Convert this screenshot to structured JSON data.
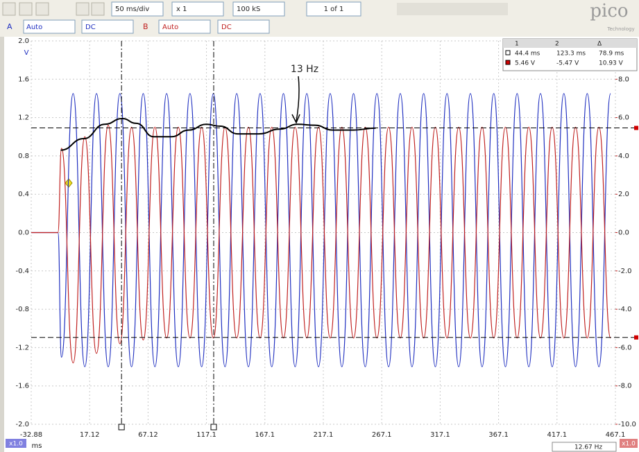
{
  "toolbar": {
    "timebase": "50 ms/div",
    "zoom": "x 1",
    "samples": "100 kS",
    "buffer": "1 of 1",
    "logo": "pico",
    "logo_sub": "Technology"
  },
  "channels": [
    {
      "label": "A",
      "range": "Auto",
      "coupling": "DC"
    },
    {
      "label": "B",
      "range": "Auto",
      "coupling": "DC"
    }
  ],
  "chart_data": {
    "type": "line",
    "y_unit": "V",
    "x_unit": "ms",
    "xlim": [
      -32.88,
      467.12
    ],
    "xticks": [
      -32.88,
      17.12,
      67.12,
      {
        "value": 117.12,
        "label": "117.1"
      },
      {
        "value": 167.12,
        "label": "167.1"
      },
      {
        "value": 217.12,
        "label": "217.1"
      },
      {
        "value": 267.12,
        "label": "267.1"
      },
      {
        "value": 317.12,
        "label": "317.1"
      },
      {
        "value": 367.12,
        "label": "367.1"
      },
      {
        "value": 417.12,
        "label": "417.1"
      },
      {
        "value": 467.12,
        "label": "467.1"
      }
    ],
    "ylim": [
      -2,
      2
    ],
    "yticks": [
      {
        "value": 2,
        "label": "2.0"
      },
      1.6,
      1.2,
      0.8,
      0.4,
      {
        "value": 0,
        "label": "0.0"
      },
      -0.4,
      -0.8,
      -1.2,
      -1.6,
      {
        "value": -2,
        "label": "-2.0"
      }
    ],
    "y2lim": [
      -10,
      10
    ],
    "y2ticks": [
      {
        "value": 8,
        "label": "8.0"
      },
      {
        "value": 6,
        "label": "6.0"
      },
      {
        "value": 4,
        "label": "4.0"
      },
      {
        "value": 2,
        "label": "2.0"
      },
      {
        "value": 0,
        "label": "0.0"
      },
      {
        "value": -2,
        "label": "-2.0"
      },
      {
        "value": -4,
        "label": "-4.0"
      },
      {
        "value": -6,
        "label": "-6.0"
      },
      {
        "value": -8,
        "label": "-8.0"
      },
      {
        "value": -10,
        "label": "-10.0"
      }
    ],
    "grid": true,
    "x": [
      -32.88,
      -10,
      -7,
      3,
      13,
      23,
      33,
      43,
      53,
      63,
      73,
      83,
      93,
      103,
      113,
      123,
      133,
      143,
      153,
      163,
      173,
      183,
      193,
      203,
      213,
      223,
      233,
      243,
      253,
      263,
      273,
      283,
      293,
      303,
      313,
      323,
      333,
      343,
      353,
      363,
      373,
      383,
      393,
      403,
      413,
      423,
      433,
      443,
      453,
      463
    ],
    "series": [
      {
        "color": "#1f2fc0",
        "values": [
          0,
          0,
          -1.3,
          1.45,
          -1.4,
          1.45,
          -1.4,
          1.45,
          -1.4,
          1.45,
          -1.4,
          1.45,
          -1.4,
          1.45,
          -1.4,
          1.45,
          -1.4,
          1.45,
          -1.4,
          1.45,
          -1.4,
          1.45,
          -1.4,
          1.45,
          -1.4,
          1.45,
          -1.4,
          1.45,
          -1.4,
          1.45,
          -1.4,
          1.45,
          -1.4,
          1.45,
          -1.4,
          1.45,
          -1.4,
          1.45,
          -1.4,
          1.45,
          -1.4,
          1.45,
          -1.4,
          1.45,
          -1.4,
          1.45,
          -1.4,
          1.45,
          -1.4,
          1.45
        ]
      },
      {
        "color": "#c0201f",
        "axis": "y2",
        "values": [
          0,
          0,
          4.4,
          -6.8,
          5.0,
          -6.3,
          5.6,
          -5.8,
          5.5,
          -5.6,
          5.5,
          -5.5,
          5.5,
          -5.5,
          5.5,
          -5.5,
          5.5,
          -5.5,
          5.5,
          -5.5,
          5.5,
          -5.5,
          5.5,
          -5.5,
          5.5,
          -5.5,
          5.5,
          -5.5,
          5.5,
          -5.5,
          5.5,
          -5.5,
          5.5,
          -5.5,
          5.5,
          -5.5,
          5.5,
          -5.5,
          5.5,
          -5.5,
          5.5,
          -5.5,
          5.5,
          -5.5,
          5.5,
          -5.5,
          5.5,
          -5.5,
          5.5,
          -5.5
        ]
      }
    ],
    "envelope": {
      "color": "#000000",
      "x": [
        -7.7,
        12,
        30,
        45,
        57,
        72,
        87,
        102,
        117,
        129,
        144,
        162,
        180,
        195,
        210,
        225,
        243,
        262
      ],
      "values": [
        0.86,
        0.98,
        1.13,
        1.19,
        1.14,
        1.0,
        1.0,
        1.07,
        1.13,
        1.11,
        1.03,
        1.03,
        1.08,
        1.13,
        1.12,
        1.07,
        1.07,
        1.09
      ]
    },
    "annotation": "13 Hz",
    "rulers": {
      "x": [
        44.4,
        123.3
      ],
      "y2": [
        5.46,
        -5.47
      ]
    }
  },
  "measurements": {
    "header": [
      "1",
      "2",
      "Δ"
    ],
    "rows": [
      [
        "44.4 ms",
        "123.3 ms",
        "78.9 ms"
      ],
      [
        "5.46 V",
        "-5.47 V",
        "10.93 V"
      ]
    ]
  },
  "footer": {
    "scale_left": "x1.0",
    "scale_right": "x1.0",
    "frequency": "12.67 Hz"
  }
}
